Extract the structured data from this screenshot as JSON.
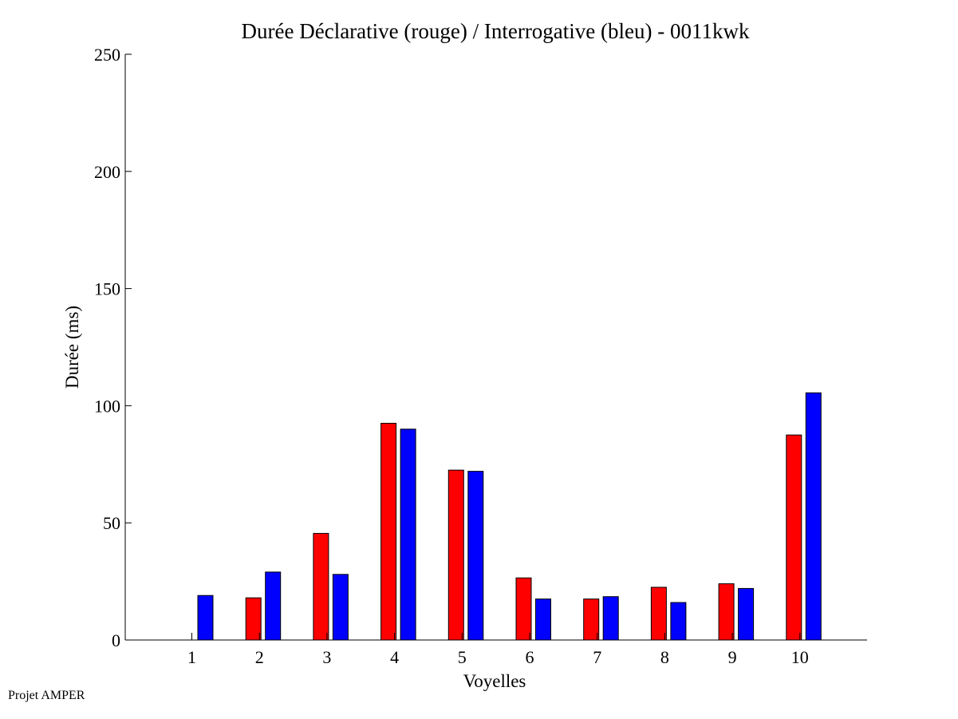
{
  "chart_data": {
    "type": "bar",
    "title": "Durée Déclarative (rouge) / Interrogative (bleu) - 0011kwk",
    "xlabel": "Voyelles",
    "ylabel": "Durée (ms)",
    "ylim": [
      0,
      250
    ],
    "yticks": [
      "0",
      "50",
      "100",
      "150",
      "200",
      "250"
    ],
    "categories": [
      "1",
      "2",
      "3",
      "4",
      "5",
      "6",
      "7",
      "8",
      "9",
      "10"
    ],
    "series": [
      {
        "color": "#ff0000",
        "values": [
          0,
          18,
          45.5,
          92.5,
          72.5,
          26.5,
          17.5,
          22.5,
          24,
          87.5
        ]
      },
      {
        "color": "#0000ff",
        "values": [
          19,
          29,
          28,
          90,
          72,
          17.5,
          18.5,
          16,
          22,
          105.5
        ]
      }
    ],
    "grid": false,
    "legend": "none"
  },
  "footer": {
    "credit": "Projet AMPER"
  }
}
